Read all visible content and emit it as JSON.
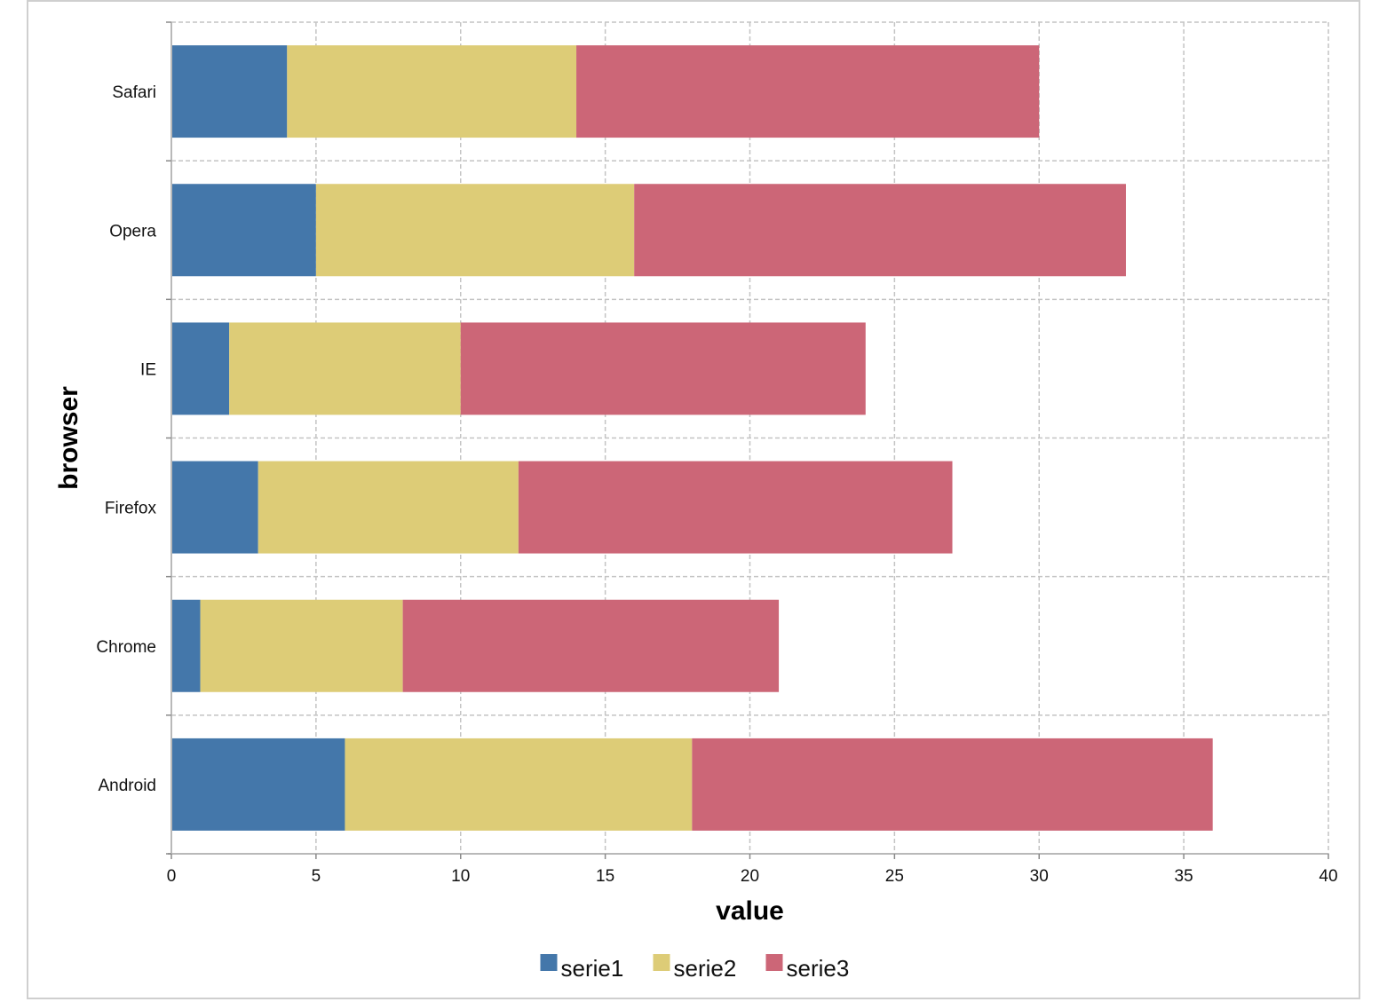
{
  "chart_data": {
    "type": "bar",
    "orientation": "horizontal",
    "stacked": true,
    "categories": [
      "Android",
      "Chrome",
      "Firefox",
      "IE",
      "Opera",
      "Safari"
    ],
    "series": [
      {
        "name": "serie1",
        "color": "#4477AA",
        "values": [
          6,
          1,
          3,
          2,
          5,
          4
        ]
      },
      {
        "name": "serie2",
        "color": "#DDCC77",
        "values": [
          12,
          7,
          9,
          8,
          11,
          10
        ]
      },
      {
        "name": "serie3",
        "color": "#CC6677",
        "values": [
          18,
          13,
          15,
          14,
          17,
          16
        ]
      }
    ],
    "xlabel": "value",
    "ylabel": "browser",
    "xlim": [
      0,
      40
    ],
    "xticks": [
      0,
      5,
      10,
      15,
      20,
      25,
      30,
      35,
      40
    ],
    "grid": true,
    "legend_position": "bottom"
  }
}
